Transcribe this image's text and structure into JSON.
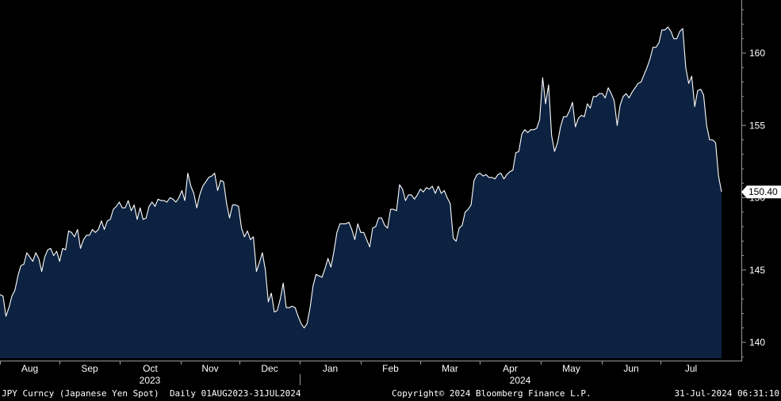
{
  "footer": {
    "security": "JPY Curncy (Japanese Yen Spot)",
    "range": "Daily 01AUG2023-31JUL2024",
    "copyright": "Copyright© 2024 Bloomberg Finance L.P.",
    "timestamp": "31-Jul-2024 06:31:10"
  },
  "colors": {
    "background": "#000000",
    "area_fill": "#0c2240",
    "line": "#ffffff",
    "axis": "#9a9a9a",
    "label_bg": "#ffffff",
    "label_text": "#000000"
  },
  "chart_data": {
    "type": "area",
    "title": "",
    "xlabel": "",
    "ylabel": "",
    "ylim": [
      139.0,
      163.0
    ],
    "yticks": [
      140,
      145,
      150,
      155,
      160
    ],
    "last_value_label": "150.40",
    "grid": false,
    "x_month_labels": [
      "Aug",
      "Sep",
      "Oct",
      "Nov",
      "Dec",
      "Jan",
      "Feb",
      "Mar",
      "Apr",
      "May",
      "Jun",
      "Jul"
    ],
    "x_year_labels": [
      "2023",
      "2024"
    ],
    "series": [
      {
        "type": "area",
        "values": [
          143.3,
          143.2,
          141.8,
          142.4,
          143.2,
          143.6,
          144.6,
          145.3,
          145.4,
          146.2,
          145.9,
          145.6,
          146.2,
          145.8,
          144.9,
          145.9,
          146.4,
          146.5,
          146.0,
          146.3,
          145.6,
          146.5,
          146.4,
          147.7,
          147.6,
          147.3,
          147.8,
          146.5,
          147.1,
          147.4,
          147.4,
          147.8,
          147.6,
          147.8,
          148.4,
          147.8,
          148.4,
          148.5,
          149.2,
          149.4,
          149.7,
          149.3,
          149.3,
          149.8,
          149.1,
          149.5,
          148.5,
          149.3,
          148.5,
          148.6,
          149.4,
          149.7,
          149.4,
          149.9,
          149.8,
          149.8,
          149.7,
          150.0,
          149.9,
          149.7,
          150.0,
          150.5,
          149.8,
          151.7,
          150.8,
          150.3,
          149.3,
          150.2,
          150.8,
          151.1,
          151.4,
          151.5,
          151.7,
          150.5,
          151.2,
          151.1,
          149.6,
          148.6,
          149.5,
          149.5,
          149.4,
          147.9,
          147.3,
          147.7,
          147.1,
          147.3,
          144.9,
          145.5,
          146.2,
          145.0,
          142.8,
          143.4,
          142.1,
          142.2,
          143.0,
          144.1,
          142.4,
          142.4,
          142.5,
          142.4,
          141.8,
          141.3,
          141.0,
          141.3,
          142.4,
          143.9,
          144.7,
          144.6,
          144.5,
          145.1,
          145.8,
          145.2,
          146.3,
          147.6,
          148.2,
          148.2,
          148.2,
          148.3,
          147.8,
          147.1,
          148.2,
          147.6,
          147.6,
          147.1,
          146.6,
          147.9,
          148.0,
          148.6,
          148.6,
          148.1,
          147.9,
          149.2,
          149.2,
          149.1,
          150.9,
          150.6,
          149.8,
          150.2,
          150.2,
          149.9,
          150.2,
          150.6,
          150.4,
          150.7,
          150.6,
          150.8,
          150.3,
          150.8,
          150.3,
          150.5,
          150.0,
          149.6,
          147.2,
          147.0,
          147.9,
          148.1,
          149.0,
          149.2,
          149.5,
          151.2,
          151.6,
          151.7,
          151.5,
          151.6,
          151.4,
          151.4,
          151.3,
          151.6,
          151.7,
          151.3,
          151.6,
          151.8,
          151.9,
          153.1,
          153.2,
          154.4,
          154.7,
          154.5,
          154.7,
          154.7,
          154.8,
          155.4,
          158.3,
          156.5,
          157.8,
          154.3,
          153.2,
          153.8,
          154.9,
          155.6,
          155.6,
          156.0,
          156.6,
          154.9,
          155.5,
          155.7,
          155.6,
          156.5,
          156.2,
          157.0,
          157.0,
          157.2,
          157.2,
          156.9,
          157.6,
          157.2,
          156.7,
          155.0,
          156.4,
          157.0,
          157.2,
          156.9,
          157.3,
          157.6,
          157.9,
          158.0,
          158.5,
          159.0,
          159.6,
          160.4,
          160.4,
          160.7,
          161.6,
          161.6,
          161.8,
          161.5,
          161.0,
          161.0,
          161.5,
          161.7,
          159.0,
          157.9,
          158.4,
          156.3,
          157.4,
          157.5,
          157.1,
          155.0,
          154.0,
          154.0,
          153.8,
          151.5,
          150.4
        ]
      }
    ]
  }
}
